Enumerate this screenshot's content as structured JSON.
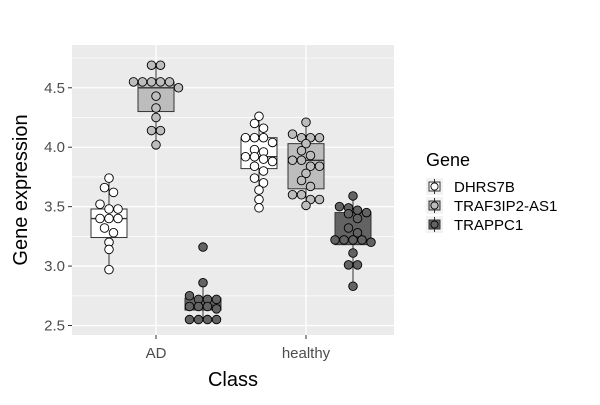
{
  "chart_data": {
    "type": "boxplot",
    "xlabel": "Class",
    "ylabel": "Gene expression",
    "categories": [
      "AD",
      "healthy"
    ],
    "yticks": [
      2.5,
      3.0,
      3.5,
      4.0,
      4.5
    ],
    "ytick_labels": [
      "2.5",
      "3.0",
      "3.5",
      "4.0",
      "4.5"
    ],
    "ylim": [
      2.42,
      4.86
    ],
    "grid": true,
    "legend": {
      "title": "Gene",
      "position": "right",
      "entries": [
        "DHRS7B",
        "TRAF3IP2-AS1",
        "TRAPPC1"
      ]
    },
    "series": [
      {
        "name": "DHRS7B",
        "color": "#ffffff",
        "boxes": [
          {
            "category": "AD",
            "min": 2.97,
            "q1": 3.24,
            "median": 3.4,
            "q3": 3.48,
            "max": 3.74
          },
          {
            "category": "healthy",
            "min": 3.49,
            "q1": 3.82,
            "median": 3.92,
            "q3": 4.08,
            "max": 4.26
          }
        ],
        "points": [
          {
            "category": "AD",
            "values": [
              3.74,
              3.66,
              3.62,
              3.52,
              3.48,
              3.48,
              3.4,
              3.4,
              3.4,
              3.32,
              3.28,
              3.2,
              3.14,
              2.97
            ]
          },
          {
            "category": "healthy",
            "values": [
              4.26,
              4.2,
              4.16,
              4.08,
              4.08,
              4.08,
              4.04,
              3.98,
              3.96,
              3.92,
              3.92,
              3.9,
              3.88,
              3.84,
              3.8,
              3.74,
              3.7,
              3.64,
              3.56,
              3.49
            ]
          }
        ]
      },
      {
        "name": "TRAF3IP2-AS1",
        "color": "#bdbdbd",
        "boxes": [
          {
            "category": "AD",
            "min": 4.02,
            "q1": 4.3,
            "median": 4.5,
            "q3": 4.55,
            "max": 4.69
          },
          {
            "category": "healthy",
            "min": 3.51,
            "q1": 3.65,
            "median": 3.89,
            "q3": 4.03,
            "max": 4.21
          }
        ],
        "points": [
          {
            "category": "AD",
            "values": [
              4.69,
              4.69,
              4.55,
              4.55,
              4.55,
              4.55,
              4.55,
              4.5,
              4.43,
              4.33,
              4.25,
              4.14,
              4.14,
              4.02
            ]
          },
          {
            "category": "healthy",
            "values": [
              4.21,
              4.11,
              4.08,
              4.08,
              4.08,
              4.03,
              3.97,
              3.93,
              3.89,
              3.89,
              3.84,
              3.84,
              3.78,
              3.72,
              3.67,
              3.6,
              3.6,
              3.56,
              3.56,
              3.51
            ]
          }
        ]
      },
      {
        "name": "TRAPPC1",
        "color": "#636363",
        "boxes": [
          {
            "category": "AD",
            "min": 2.55,
            "q1": 2.63,
            "median": 2.67,
            "q3": 2.73,
            "max": 2.86
          },
          {
            "category": "healthy",
            "min": 2.83,
            "q1": 3.18,
            "median": 3.22,
            "q3": 3.45,
            "max": 3.59
          }
        ],
        "points": [
          {
            "category": "AD",
            "values": [
              3.16,
              2.86,
              2.75,
              2.72,
              2.72,
              2.72,
              2.66,
              2.66,
              2.66,
              2.64,
              2.55,
              2.55,
              2.55,
              2.55
            ]
          },
          {
            "category": "healthy",
            "values": [
              3.59,
              3.5,
              3.49,
              3.47,
              3.45,
              3.44,
              3.4,
              3.32,
              3.28,
              3.22,
              3.22,
              3.22,
              3.22,
              3.2,
              3.11,
              3.01,
              3.01,
              2.83
            ]
          }
        ]
      }
    ]
  }
}
